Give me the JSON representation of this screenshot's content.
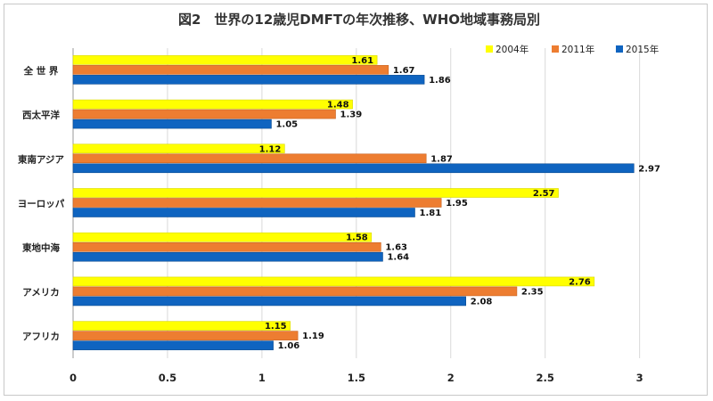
{
  "chart_data": {
    "type": "bar",
    "orientation": "horizontal",
    "title": "図2　世界の12歳児DMFTの年次推移、WHO地域事務局別",
    "xlabel": "",
    "ylabel": "",
    "xlim": [
      0,
      3.2
    ],
    "xticks": [
      0,
      0.5,
      1,
      1.5,
      2,
      2.5,
      3
    ],
    "xtick_labels": [
      "0",
      "0.5",
      "1",
      "1.5",
      "2",
      "2.5",
      "3"
    ],
    "grid": true,
    "legend_position": "top-right",
    "categories": [
      "全 世 界",
      "西太平洋",
      "東南アジア",
      "ヨーロッパ",
      "東地中海",
      "アメリカ",
      "アフリカ"
    ],
    "series": [
      {
        "name": "2004年",
        "color": "#ffff00",
        "values": [
          1.61,
          1.48,
          1.12,
          2.57,
          1.58,
          2.76,
          1.15
        ],
        "labels": [
          "1.61",
          "1.48",
          "1.12",
          "2.57",
          "1.58",
          "2.76",
          "1.15"
        ]
      },
      {
        "name": "2011年",
        "color": "#ed7d31",
        "values": [
          1.67,
          1.39,
          1.87,
          1.95,
          1.63,
          2.35,
          1.19
        ],
        "labels": [
          "1.67",
          "1.39",
          "1.87",
          "1.95",
          "1.63",
          "2.35",
          "1.19"
        ]
      },
      {
        "name": "2015年",
        "color": "#0f64c0",
        "values": [
          1.86,
          1.05,
          2.97,
          1.81,
          1.64,
          2.08,
          1.06
        ],
        "labels": [
          "1.86",
          "1.05",
          "2.97",
          "1.81",
          "1.64",
          "2.08",
          "1.06"
        ]
      }
    ]
  }
}
